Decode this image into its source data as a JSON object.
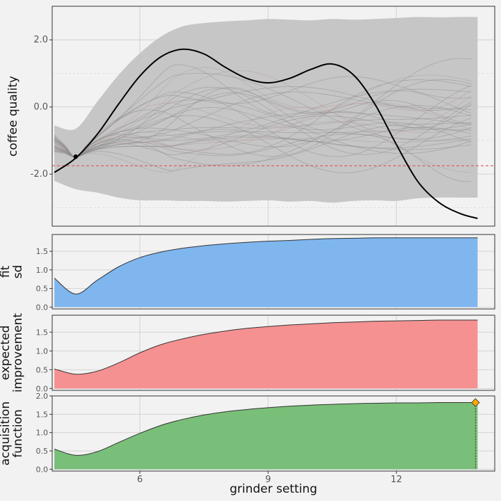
{
  "chart_data": [
    {
      "type": "line",
      "ylabel": "coffee quality",
      "xlim": [
        3.95,
        14.3
      ],
      "ylim": [
        -3.55,
        3.0
      ],
      "yticks": [
        -2.0,
        0.0,
        2.0
      ],
      "ytick_labels": [
        "-2.0",
        "0.0",
        "2.0"
      ],
      "observation": {
        "x": 4.5,
        "y": -1.48
      },
      "best_observed_line": {
        "y": -1.75,
        "color": "#e05555"
      },
      "series": [
        {
          "x": [
            4.0,
            4.5,
            5.0,
            5.5,
            6.0,
            6.5,
            7.0,
            7.5,
            8.0,
            8.5,
            9.0,
            9.5,
            10.0,
            10.5,
            11.0,
            11.5,
            12.0,
            12.5,
            13.0,
            13.5,
            13.9
          ],
          "values": [
            -1.95,
            -1.52,
            -0.82,
            0.08,
            0.92,
            1.5,
            1.72,
            1.58,
            1.18,
            0.85,
            0.72,
            0.85,
            1.12,
            1.28,
            0.95,
            0.08,
            -1.12,
            -2.22,
            -2.85,
            -3.18,
            -3.32
          ],
          "color": "#000000"
        }
      ],
      "band": {
        "x": [
          4.0,
          4.5,
          5.0,
          5.5,
          6.0,
          6.5,
          7.0,
          7.5,
          8.0,
          8.5,
          9.0,
          9.5,
          10.0,
          10.5,
          11.0,
          11.5,
          12.0,
          12.5,
          13.0,
          13.5,
          13.9
        ],
        "upper": [
          -0.55,
          -0.65,
          0.15,
          0.95,
          1.6,
          2.1,
          2.4,
          2.5,
          2.55,
          2.58,
          2.62,
          2.6,
          2.58,
          2.62,
          2.6,
          2.62,
          2.65,
          2.68,
          2.67,
          2.68,
          2.68
        ],
        "lower": [
          -2.2,
          -2.45,
          -2.55,
          -2.7,
          -2.78,
          -2.78,
          -2.8,
          -2.8,
          -2.82,
          -2.8,
          -2.78,
          -2.82,
          -2.8,
          -2.85,
          -2.8,
          -2.78,
          -2.8,
          -2.72,
          -2.7,
          -2.7,
          -2.7
        ],
        "color": "#c6c6c6"
      },
      "sample_curves_shown": true
    },
    {
      "type": "area",
      "ylabel": [
        "fit",
        "sd"
      ],
      "ylim": [
        -0.05,
        1.95
      ],
      "yticks": [
        0.0,
        0.5,
        1.0,
        1.5
      ],
      "ytick_labels": [
        "0.0",
        "0.5",
        "1.0",
        "1.5"
      ],
      "x": [
        4.0,
        4.5,
        5.0,
        5.5,
        6.0,
        6.5,
        7.0,
        7.5,
        8.0,
        8.5,
        9.0,
        9.5,
        10.0,
        10.5,
        11.0,
        11.5,
        12.0,
        12.5,
        13.0,
        13.5,
        13.9
      ],
      "values": [
        0.78,
        0.35,
        0.72,
        1.08,
        1.33,
        1.48,
        1.58,
        1.65,
        1.7,
        1.74,
        1.77,
        1.79,
        1.82,
        1.84,
        1.85,
        1.86,
        1.86,
        1.86,
        1.86,
        1.86,
        1.86
      ],
      "color": "#7fb6ee"
    },
    {
      "type": "area",
      "ylabel": [
        "expected",
        "improvement"
      ],
      "ylim": [
        -0.05,
        1.95
      ],
      "yticks": [
        0.0,
        0.5,
        1.0,
        1.5
      ],
      "ytick_labels": [
        "0.0",
        "0.5",
        "1.0",
        "1.5"
      ],
      "x": [
        4.0,
        4.5,
        5.0,
        5.5,
        6.0,
        6.5,
        7.0,
        7.5,
        8.0,
        8.5,
        9.0,
        9.5,
        10.0,
        10.5,
        11.0,
        11.5,
        12.0,
        12.5,
        13.0,
        13.5,
        13.9
      ],
      "values": [
        0.52,
        0.38,
        0.46,
        0.68,
        0.95,
        1.17,
        1.32,
        1.44,
        1.53,
        1.6,
        1.65,
        1.69,
        1.72,
        1.75,
        1.77,
        1.79,
        1.8,
        1.81,
        1.82,
        1.82,
        1.82
      ],
      "color": "#f59191"
    },
    {
      "type": "area",
      "ylabel": [
        "acquisition",
        "function"
      ],
      "ylim": [
        -0.05,
        2.0
      ],
      "yticks": [
        0.0,
        0.5,
        1.0,
        1.5,
        2.0
      ],
      "ytick_labels": [
        "0.0",
        "0.5",
        "1.0",
        "1.5",
        "2.0"
      ],
      "xlabel": "grinder setting",
      "xticks": [
        6,
        9,
        12
      ],
      "xtick_labels": [
        "6",
        "9",
        "12"
      ],
      "x": [
        4.0,
        4.5,
        5.0,
        5.5,
        6.0,
        6.5,
        7.0,
        7.5,
        8.0,
        8.5,
        9.0,
        9.5,
        10.0,
        10.5,
        11.0,
        11.5,
        12.0,
        12.5,
        13.0,
        13.5,
        13.9
      ],
      "values": [
        0.55,
        0.38,
        0.48,
        0.73,
        0.98,
        1.2,
        1.36,
        1.48,
        1.57,
        1.63,
        1.68,
        1.72,
        1.75,
        1.77,
        1.79,
        1.8,
        1.81,
        1.81,
        1.82,
        1.82,
        1.82
      ],
      "color": "#79bf79",
      "maximum_marker": {
        "x": 13.85,
        "y": 1.82,
        "color": "#ffa500"
      }
    }
  ]
}
